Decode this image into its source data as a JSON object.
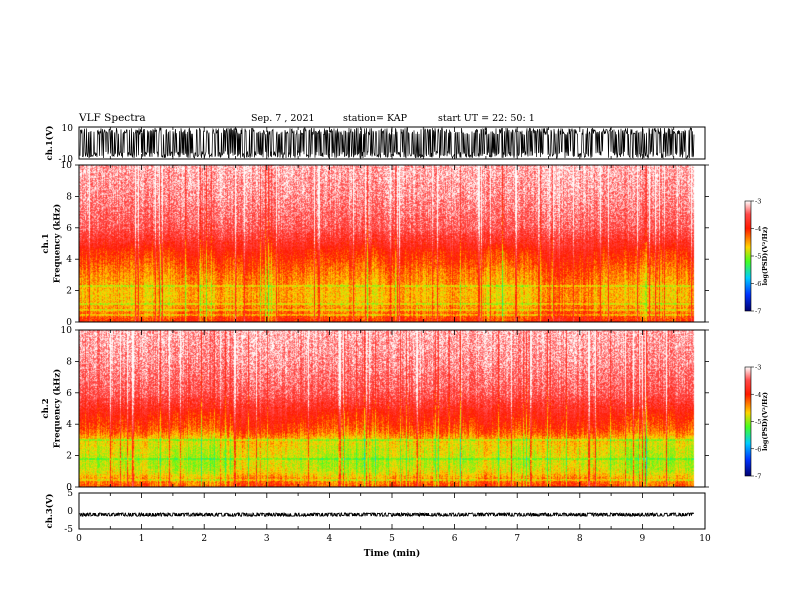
{
  "header": {
    "title": "VLF Spectra",
    "date": "Sep. 7 , 2021",
    "station": "station= KAP",
    "start_ut": "start UT =   22: 50: 1"
  },
  "colorbar": {
    "label": "log(PSD)(V²/Hz)",
    "ticks": [
      "-3",
      "-4",
      "-5",
      "-6",
      "-7"
    ],
    "colors": [
      "#ffffff",
      "#ff4a4a",
      "#ff1a00",
      "#ffd400",
      "#44ff22",
      "#00ccff",
      "#0033ff",
      "#000070"
    ]
  },
  "chart_data": [
    {
      "type": "line",
      "panel": "ch1-waveform",
      "ylabel": "ch.1(V)",
      "ylim": [
        -10,
        10
      ],
      "yticks": [
        "10",
        "-10"
      ],
      "description_level": "dense oscillation filling roughly ±10 V",
      "xlim": [
        0,
        10
      ]
    },
    {
      "type": "heatmap",
      "panel": "ch1-spectrogram",
      "ylabel_top": "ch.1",
      "ylabel": "Frequency  (kHz)",
      "ylim": [
        0,
        10
      ],
      "yticks": [
        "0",
        "2",
        "4",
        "6",
        "8",
        "10"
      ],
      "xlim": [
        0,
        10
      ],
      "data_end_min": 9.83,
      "zlim": [
        -7,
        -3
      ],
      "profile_khz": [
        0,
        0.5,
        1,
        1.5,
        2,
        2.5,
        3,
        3.5,
        4,
        4.5,
        5,
        6,
        7,
        8,
        9,
        10
      ],
      "profile_level": [
        -4.0,
        -4.2,
        -4.35,
        -4.45,
        -4.45,
        -4.35,
        -4.3,
        -4.2,
        -4.1,
        -4.0,
        -3.8,
        -3.5,
        -3.4,
        -3.3,
        -3.25,
        -3.2
      ],
      "line_khz": [
        0.5,
        0.8,
        1.2,
        2.3
      ]
    },
    {
      "type": "heatmap",
      "panel": "ch2-spectrogram",
      "ylabel_top": "ch.2",
      "ylabel": "Frequency  (kHz)",
      "ylim": [
        0,
        10
      ],
      "yticks": [
        "0",
        "2",
        "4",
        "6",
        "8",
        "10"
      ],
      "xlim": [
        0,
        10
      ],
      "data_end_min": 9.83,
      "zlim": [
        -7,
        -3
      ],
      "profile_khz": [
        0,
        0.5,
        1,
        1.5,
        2,
        2.5,
        3,
        3.5,
        4,
        4.5,
        5,
        6,
        7,
        8,
        9,
        10
      ],
      "profile_level": [
        -4.1,
        -4.3,
        -4.6,
        -4.7,
        -4.65,
        -4.6,
        -4.5,
        -4.2,
        -4.05,
        -3.95,
        -3.8,
        -3.5,
        -3.4,
        -3.3,
        -3.25,
        -3.2
      ],
      "line_khz": [
        0.5,
        1.8,
        3.0
      ]
    },
    {
      "type": "line",
      "panel": "ch3-waveform",
      "ylabel": "ch.3(V)",
      "ylim": [
        -5,
        5
      ],
      "yticks": [
        "5",
        "0",
        "-5"
      ],
      "description_level": "narrow band around -1 V",
      "xlim": [
        0,
        10
      ],
      "xlabel": "Time  (min)",
      "xticks": [
        "0",
        "1",
        "2",
        "3",
        "4",
        "5",
        "6",
        "7",
        "8",
        "9",
        "10"
      ]
    }
  ]
}
